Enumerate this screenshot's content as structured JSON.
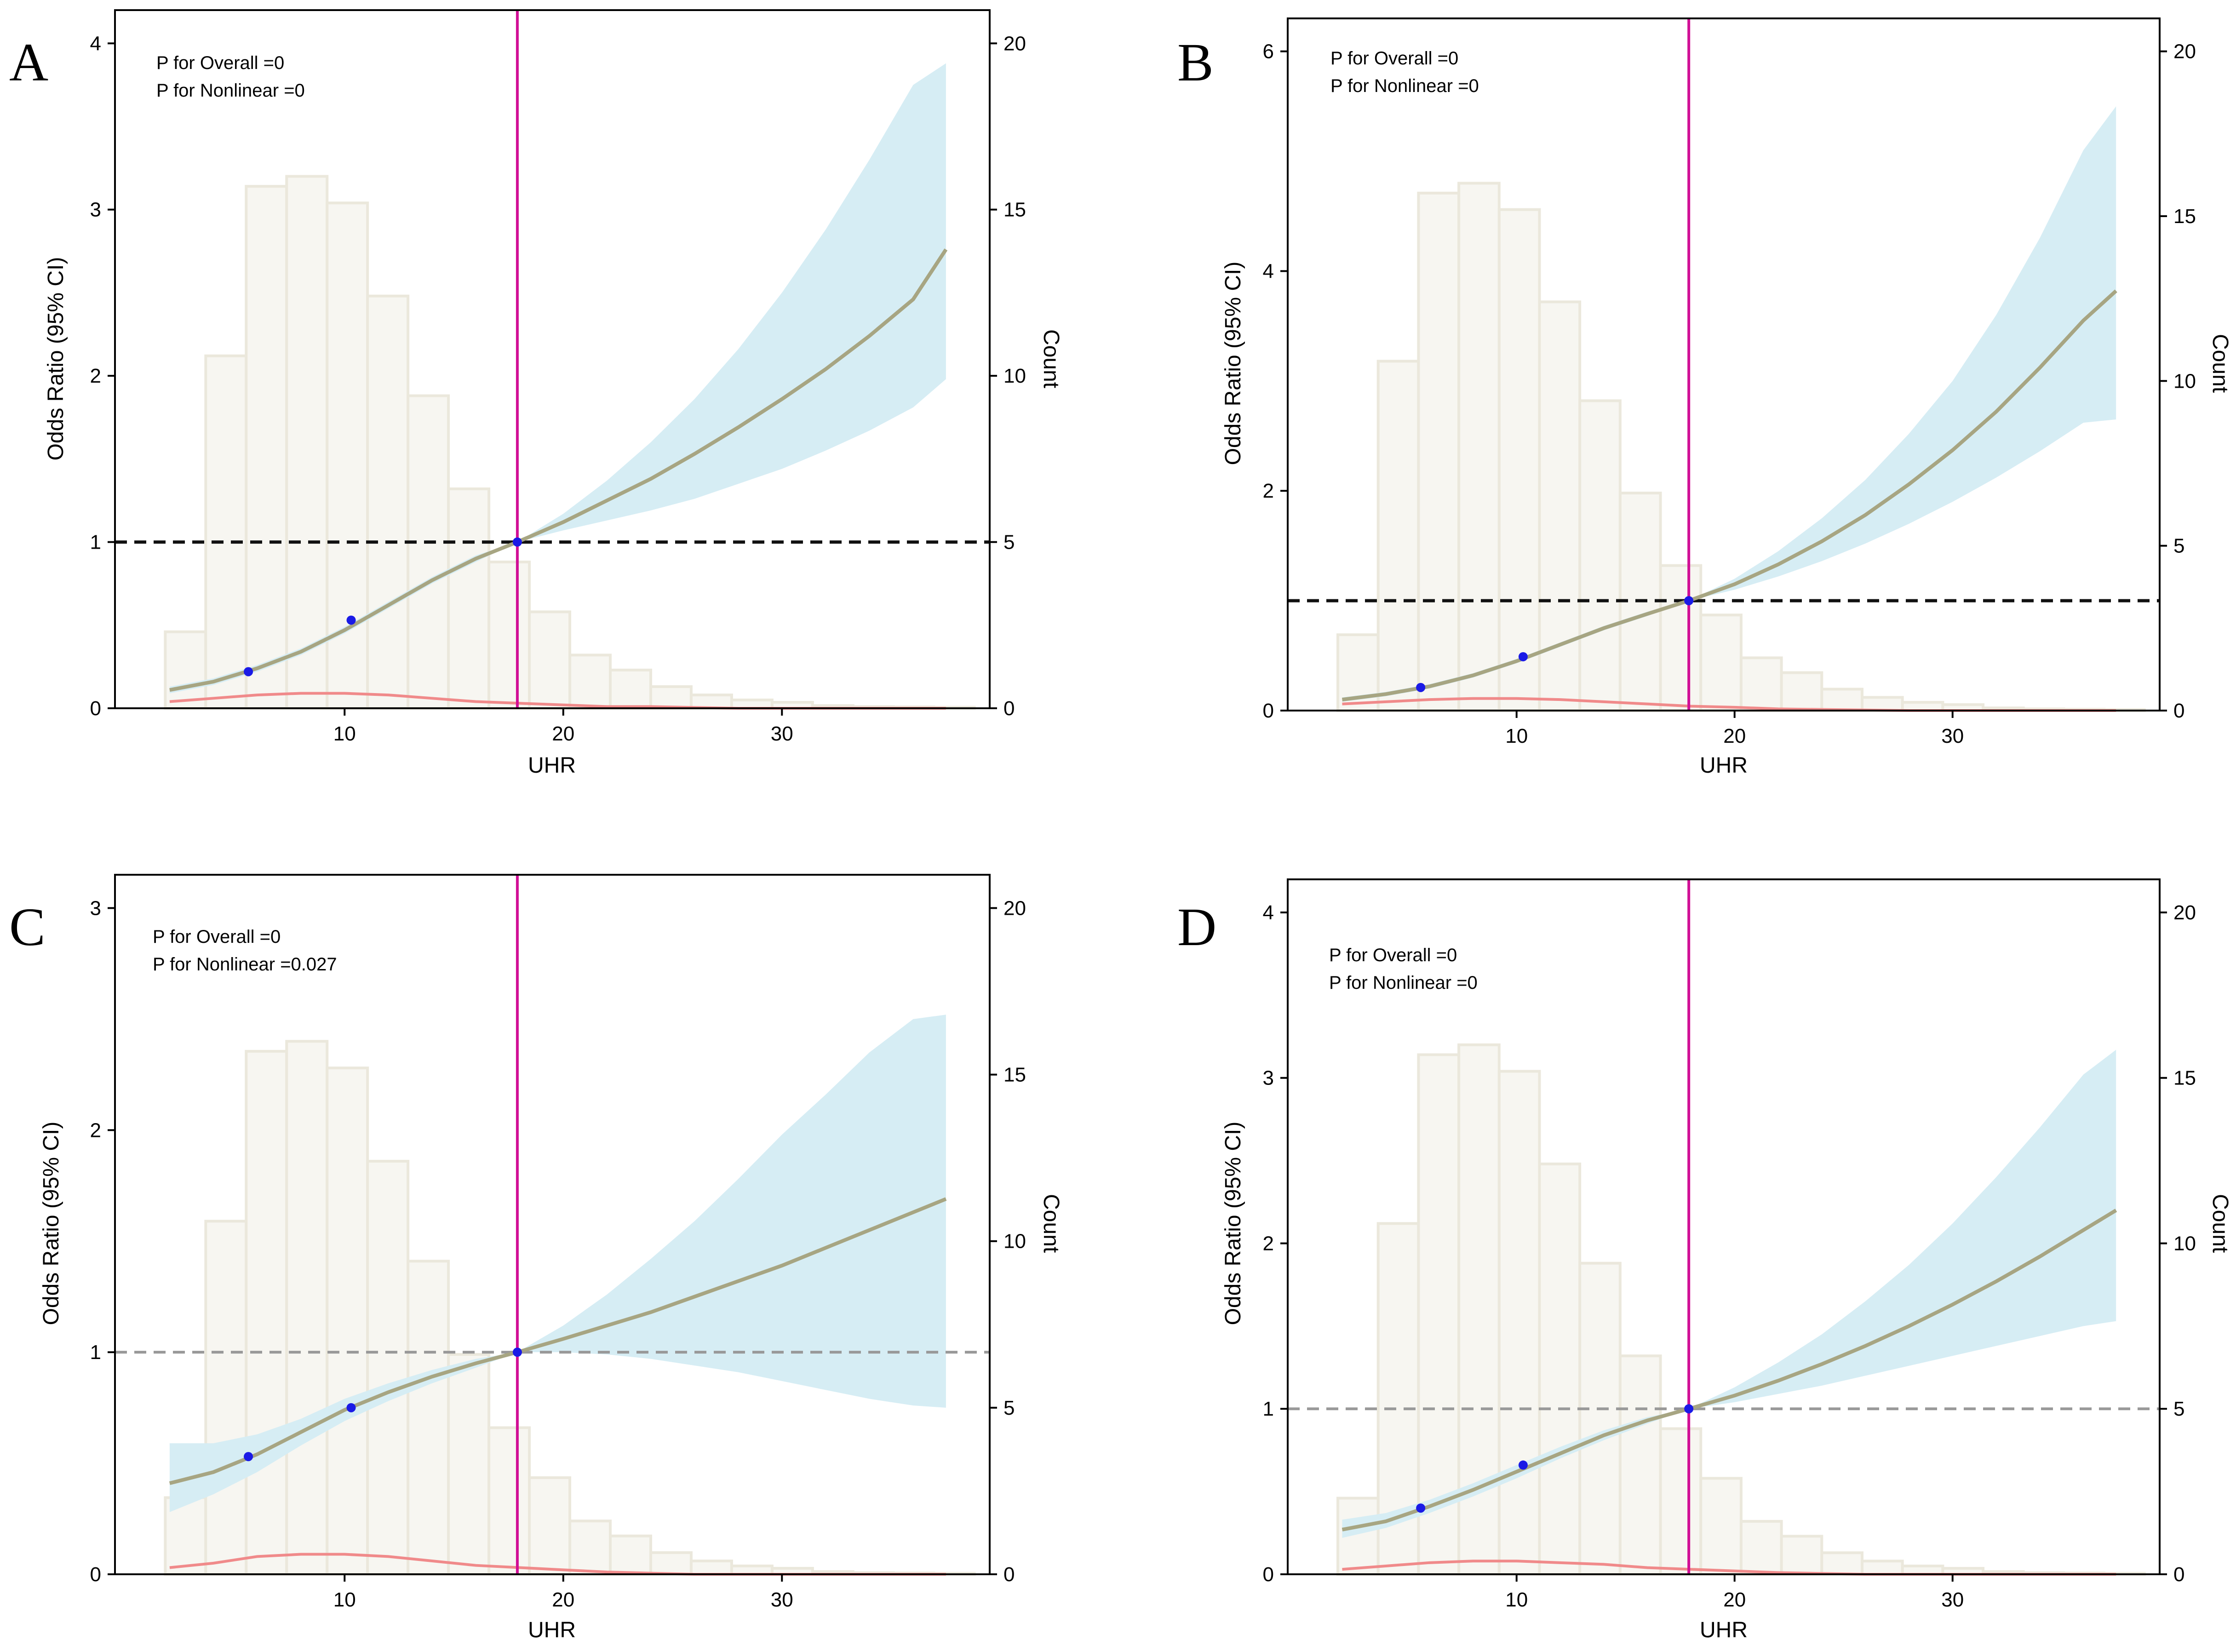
{
  "figure": {
    "colors": {
      "ci_band": "#d6edf4",
      "or_curve": "#a7a582",
      "density": "#f08a8a",
      "hist_fill": "#f7f6f1",
      "hist_edge": "#ebe8dc",
      "ref_vline": "#d10f96",
      "point": "#1a1ae6",
      "ref_hline_black": "#111111",
      "ref_hline_gray": "#999999"
    }
  },
  "chart_data": [
    {
      "type": "line",
      "panel_label": "A",
      "xlabel": "UHR",
      "ylabel": "Odds Ratio (95% CI)",
      "y2label": "Count",
      "xlim": [
        -0.5,
        39.5
      ],
      "x_ticks": [
        10,
        20,
        30
      ],
      "ylim": [
        0,
        4.2
      ],
      "y_ticks": [
        0,
        1,
        2,
        3,
        4
      ],
      "y2lim": [
        0,
        21
      ],
      "y2_ticks": [
        0,
        5,
        10,
        15,
        20
      ],
      "ref_x": 17.9,
      "ref_y": 1,
      "ref_y_style": "black",
      "annotations": [
        "P for Overall =0",
        "P for Nonlinear =0"
      ],
      "x": [
        2,
        4,
        6,
        8,
        10,
        12,
        14,
        16,
        17.9,
        20,
        22,
        24,
        26,
        28,
        30,
        32,
        34,
        36,
        37.5
      ],
      "or": [
        0.11,
        0.16,
        0.24,
        0.34,
        0.47,
        0.62,
        0.77,
        0.9,
        1.0,
        1.12,
        1.25,
        1.38,
        1.53,
        1.69,
        1.86,
        2.04,
        2.24,
        2.46,
        2.76
      ],
      "lower": [
        0.09,
        0.14,
        0.22,
        0.32,
        0.45,
        0.6,
        0.75,
        0.88,
        1.0,
        1.07,
        1.13,
        1.19,
        1.26,
        1.35,
        1.44,
        1.55,
        1.67,
        1.81,
        1.98
      ],
      "upper": [
        0.13,
        0.18,
        0.26,
        0.36,
        0.49,
        0.64,
        0.79,
        0.92,
        1.0,
        1.17,
        1.37,
        1.6,
        1.86,
        2.16,
        2.5,
        2.88,
        3.3,
        3.75,
        3.88
      ],
      "points": [
        {
          "x": 5.6,
          "y": 0.22
        },
        {
          "x": 10.3,
          "y": 0.53
        },
        {
          "x": 17.9,
          "y": 1.0
        }
      ],
      "hist_bins": {
        "start": 1.8,
        "width": 1.85,
        "counts": [
          2.3,
          10.6,
          15.7,
          16.0,
          15.2,
          12.4,
          9.4,
          6.6,
          4.4,
          2.9,
          1.6,
          1.15,
          0.65,
          0.4,
          0.25,
          0.18,
          0.08,
          0.05,
          0.04,
          0.03
        ]
      },
      "density": {
        "x": [
          2,
          4,
          6,
          8,
          10,
          12,
          14,
          16,
          18,
          20,
          22,
          24,
          26,
          28,
          30,
          32,
          34,
          36,
          37.5
        ],
        "y": [
          0.04,
          0.06,
          0.08,
          0.09,
          0.09,
          0.08,
          0.06,
          0.04,
          0.03,
          0.02,
          0.01,
          0.01,
          0.005,
          0,
          0,
          0,
          0,
          0,
          0
        ]
      }
    },
    {
      "type": "line",
      "panel_label": "B",
      "xlabel": "UHR",
      "ylabel": "Odds Ratio (95% CI)",
      "y2label": "Count",
      "xlim": [
        -0.5,
        39.5
      ],
      "x_ticks": [
        10,
        20,
        30
      ],
      "ylim": [
        0,
        6.3
      ],
      "y_ticks": [
        0,
        2,
        4,
        6
      ],
      "y2lim": [
        0,
        21
      ],
      "y2_ticks": [
        0,
        5,
        10,
        15,
        20
      ],
      "ref_x": 17.9,
      "ref_y": 1,
      "ref_y_style": "black",
      "annotations": [
        "P for Overall =0",
        "P for Nonlinear =0"
      ],
      "x": [
        2,
        4,
        6,
        8,
        10,
        12,
        14,
        16,
        17.9,
        20,
        22,
        24,
        26,
        28,
        30,
        32,
        34,
        36,
        37.5
      ],
      "or": [
        0.1,
        0.15,
        0.22,
        0.32,
        0.45,
        0.6,
        0.75,
        0.88,
        1.0,
        1.15,
        1.33,
        1.54,
        1.78,
        2.06,
        2.37,
        2.72,
        3.12,
        3.55,
        3.82
      ],
      "lower": [
        0.08,
        0.13,
        0.2,
        0.3,
        0.43,
        0.58,
        0.73,
        0.86,
        1.0,
        1.1,
        1.22,
        1.36,
        1.52,
        1.7,
        1.9,
        2.12,
        2.36,
        2.62,
        2.65
      ],
      "upper": [
        0.12,
        0.17,
        0.24,
        0.34,
        0.47,
        0.62,
        0.77,
        0.9,
        1.0,
        1.2,
        1.45,
        1.75,
        2.1,
        2.52,
        3.0,
        3.6,
        4.3,
        5.1,
        5.5
      ],
      "points": [
        {
          "x": 5.6,
          "y": 0.21
        },
        {
          "x": 10.3,
          "y": 0.49
        },
        {
          "x": 17.9,
          "y": 1.0
        }
      ],
      "hist_bins": {
        "start": 1.8,
        "width": 1.85,
        "counts": [
          2.3,
          10.6,
          15.7,
          16.0,
          15.2,
          12.4,
          9.4,
          6.6,
          4.4,
          2.9,
          1.6,
          1.15,
          0.65,
          0.4,
          0.25,
          0.18,
          0.08,
          0.05,
          0.04,
          0.03
        ]
      },
      "density": {
        "x": [
          2,
          4,
          6,
          8,
          10,
          12,
          14,
          16,
          18,
          20,
          22,
          24,
          26,
          28,
          30,
          32,
          34,
          36,
          37.5
        ],
        "y": [
          0.06,
          0.08,
          0.1,
          0.11,
          0.11,
          0.1,
          0.08,
          0.06,
          0.04,
          0.03,
          0.015,
          0.01,
          0.005,
          0,
          0,
          0,
          0,
          0,
          0
        ]
      }
    },
    {
      "type": "line",
      "panel_label": "C",
      "xlabel": "UHR",
      "ylabel": "Odds Ratio (95% CI)",
      "y2label": "Count",
      "xlim": [
        -0.5,
        39.5
      ],
      "x_ticks": [
        10,
        20,
        30
      ],
      "ylim": [
        0,
        3.15
      ],
      "y_ticks": [
        0,
        1,
        2,
        3
      ],
      "y2lim": [
        0,
        21
      ],
      "y2_ticks": [
        0,
        5,
        10,
        15,
        20
      ],
      "ref_x": 17.9,
      "ref_y": 1,
      "ref_y_style": "gray",
      "annotations": [
        "P for Overall =0",
        "P for Nonlinear =0.027"
      ],
      "x": [
        2,
        4,
        6,
        8,
        10,
        12,
        14,
        16,
        17.9,
        20,
        22,
        24,
        26,
        28,
        30,
        32,
        34,
        36,
        37.5
      ],
      "or": [
        0.41,
        0.46,
        0.54,
        0.64,
        0.74,
        0.82,
        0.89,
        0.95,
        1.0,
        1.06,
        1.12,
        1.18,
        1.25,
        1.32,
        1.39,
        1.47,
        1.55,
        1.63,
        1.69
      ],
      "lower": [
        0.28,
        0.36,
        0.46,
        0.58,
        0.69,
        0.78,
        0.86,
        0.93,
        1.0,
        1.0,
        0.99,
        0.97,
        0.94,
        0.91,
        0.87,
        0.83,
        0.79,
        0.76,
        0.75
      ],
      "upper": [
        0.59,
        0.59,
        0.63,
        0.7,
        0.79,
        0.86,
        0.92,
        0.97,
        1.0,
        1.12,
        1.26,
        1.42,
        1.59,
        1.78,
        1.98,
        2.16,
        2.35,
        2.5,
        2.52
      ],
      "points": [
        {
          "x": 5.6,
          "y": 0.53
        },
        {
          "x": 10.3,
          "y": 0.75
        },
        {
          "x": 17.9,
          "y": 1.0
        }
      ],
      "hist_bins": {
        "start": 1.8,
        "width": 1.85,
        "counts": [
          2.3,
          10.6,
          15.7,
          16.0,
          15.2,
          12.4,
          9.4,
          6.6,
          4.4,
          2.9,
          1.6,
          1.15,
          0.65,
          0.4,
          0.25,
          0.18,
          0.08,
          0.05,
          0.04,
          0.03
        ]
      },
      "density": {
        "x": [
          2,
          4,
          6,
          8,
          10,
          12,
          14,
          16,
          18,
          20,
          22,
          24,
          26,
          28,
          30,
          32,
          34,
          36,
          37.5
        ],
        "y": [
          0.03,
          0.05,
          0.08,
          0.09,
          0.09,
          0.08,
          0.06,
          0.04,
          0.03,
          0.02,
          0.01,
          0.005,
          0,
          0,
          0,
          0,
          0,
          0,
          0
        ]
      }
    },
    {
      "type": "line",
      "panel_label": "D",
      "xlabel": "UHR",
      "ylabel": "Odds Ratio (95% CI)",
      "y2label": "Count",
      "xlim": [
        -0.5,
        39.5
      ],
      "x_ticks": [
        10,
        20,
        30
      ],
      "ylim": [
        0,
        4.2
      ],
      "y_ticks": [
        0,
        1,
        2,
        3,
        4
      ],
      "y2lim": [
        0,
        21
      ],
      "y2_ticks": [
        0,
        5,
        10,
        15,
        20
      ],
      "ref_x": 17.9,
      "ref_y": 1,
      "ref_y_style": "gray",
      "annotations": [
        "P for Overall =0",
        "P for Nonlinear =0"
      ],
      "x": [
        2,
        4,
        6,
        8,
        10,
        12,
        14,
        16,
        17.9,
        20,
        22,
        24,
        26,
        28,
        30,
        32,
        34,
        36,
        37.5
      ],
      "or": [
        0.27,
        0.32,
        0.41,
        0.51,
        0.62,
        0.73,
        0.84,
        0.93,
        1.0,
        1.08,
        1.17,
        1.27,
        1.38,
        1.5,
        1.63,
        1.77,
        1.92,
        2.08,
        2.2
      ],
      "lower": [
        0.22,
        0.28,
        0.37,
        0.47,
        0.58,
        0.7,
        0.81,
        0.91,
        1.0,
        1.04,
        1.09,
        1.14,
        1.2,
        1.26,
        1.32,
        1.38,
        1.44,
        1.5,
        1.53
      ],
      "upper": [
        0.33,
        0.37,
        0.45,
        0.55,
        0.66,
        0.77,
        0.87,
        0.95,
        1.0,
        1.13,
        1.28,
        1.45,
        1.65,
        1.87,
        2.12,
        2.4,
        2.7,
        3.02,
        3.17
      ],
      "points": [
        {
          "x": 5.6,
          "y": 0.4
        },
        {
          "x": 10.3,
          "y": 0.66
        },
        {
          "x": 17.9,
          "y": 1.0
        }
      ],
      "hist_bins": {
        "start": 1.8,
        "width": 1.85,
        "counts": [
          2.3,
          10.6,
          15.7,
          16.0,
          15.2,
          12.4,
          9.4,
          6.6,
          4.4,
          2.9,
          1.6,
          1.15,
          0.65,
          0.4,
          0.25,
          0.18,
          0.08,
          0.05,
          0.04,
          0.03
        ]
      },
      "density": {
        "x": [
          2,
          4,
          6,
          8,
          10,
          12,
          14,
          16,
          18,
          20,
          22,
          24,
          26,
          28,
          30,
          32,
          34,
          36,
          37.5
        ],
        "y": [
          0.03,
          0.05,
          0.07,
          0.08,
          0.08,
          0.07,
          0.06,
          0.04,
          0.03,
          0.02,
          0.01,
          0.005,
          0,
          0,
          0,
          0,
          0,
          0,
          0
        ]
      }
    }
  ]
}
